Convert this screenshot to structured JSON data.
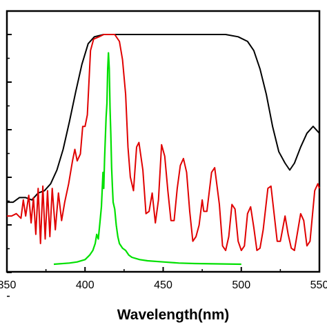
{
  "chart_data": {
    "type": "line",
    "xlabel": "Wavelength(nm)",
    "ylabel": "",
    "xlim": [
      350,
      550
    ],
    "ylim": [
      0,
      1
    ],
    "x_ticks": [
      350,
      400,
      450,
      500,
      550
    ],
    "x_tick_labels": [
      "350",
      "400",
      "450",
      "500",
      "550"
    ],
    "y_tick_count": 6,
    "grid": false,
    "legend": "none",
    "series": [
      {
        "color": "#000000",
        "points": [
          [
            350,
            0.27
          ],
          [
            354,
            0.27
          ],
          [
            358,
            0.29
          ],
          [
            362,
            0.29
          ],
          [
            366,
            0.28
          ],
          [
            370,
            0.31
          ],
          [
            374,
            0.32
          ],
          [
            378,
            0.35
          ],
          [
            382,
            0.41
          ],
          [
            386,
            0.5
          ],
          [
            390,
            0.62
          ],
          [
            394,
            0.75
          ],
          [
            398,
            0.87
          ],
          [
            402,
            0.96
          ],
          [
            406,
            0.99
          ],
          [
            412,
            1.0
          ],
          [
            440,
            1.0
          ],
          [
            470,
            1.0
          ],
          [
            490,
            1.0
          ],
          [
            498,
            0.99
          ],
          [
            504,
            0.97
          ],
          [
            508,
            0.93
          ],
          [
            512,
            0.85
          ],
          [
            516,
            0.74
          ],
          [
            520,
            0.6
          ],
          [
            524,
            0.49
          ],
          [
            528,
            0.44
          ],
          [
            531,
            0.41
          ],
          [
            534,
            0.44
          ],
          [
            538,
            0.51
          ],
          [
            542,
            0.57
          ],
          [
            546,
            0.6
          ],
          [
            550,
            0.57
          ]
        ]
      },
      {
        "color": "#e00000",
        "points": [
          [
            350,
            0.21
          ],
          [
            353,
            0.21
          ],
          [
            356,
            0.22
          ],
          [
            359,
            0.2
          ],
          [
            360.5,
            0.28
          ],
          [
            362,
            0.21
          ],
          [
            364,
            0.3
          ],
          [
            365.5,
            0.18
          ],
          [
            367,
            0.29
          ],
          [
            368.5,
            0.13
          ],
          [
            370,
            0.33
          ],
          [
            371.5,
            0.09
          ],
          [
            373,
            0.34
          ],
          [
            374.5,
            0.11
          ],
          [
            376,
            0.32
          ],
          [
            377.5,
            0.12
          ],
          [
            379,
            0.33
          ],
          [
            381,
            0.15
          ],
          [
            383,
            0.31
          ],
          [
            385,
            0.19
          ],
          [
            387,
            0.27
          ],
          [
            389.5,
            0.35
          ],
          [
            392,
            0.45
          ],
          [
            393.5,
            0.5
          ],
          [
            395,
            0.45
          ],
          [
            397,
            0.48
          ],
          [
            398.5,
            0.6
          ],
          [
            400,
            0.6
          ],
          [
            401.5,
            0.65
          ],
          [
            403.5,
            0.93
          ],
          [
            405.5,
            0.98
          ],
          [
            409,
            0.99
          ],
          [
            412,
            1.0
          ],
          [
            416,
            1.0
          ],
          [
            419,
            1.0
          ],
          [
            422,
            0.97
          ],
          [
            424,
            0.89
          ],
          [
            426,
            0.74
          ],
          [
            427.5,
            0.51
          ],
          [
            429,
            0.38
          ],
          [
            431,
            0.32
          ],
          [
            433,
            0.51
          ],
          [
            434.5,
            0.53
          ],
          [
            437,
            0.41
          ],
          [
            439,
            0.22
          ],
          [
            441,
            0.23
          ],
          [
            443,
            0.31
          ],
          [
            445,
            0.18
          ],
          [
            447,
            0.28
          ],
          [
            449,
            0.52
          ],
          [
            451,
            0.47
          ],
          [
            453,
            0.32
          ],
          [
            455,
            0.19
          ],
          [
            457,
            0.19
          ],
          [
            459,
            0.33
          ],
          [
            461,
            0.43
          ],
          [
            463,
            0.46
          ],
          [
            465,
            0.4
          ],
          [
            467,
            0.23
          ],
          [
            469,
            0.1
          ],
          [
            471,
            0.12
          ],
          [
            473,
            0.17
          ],
          [
            475,
            0.28
          ],
          [
            476,
            0.23
          ],
          [
            478,
            0.23
          ],
          [
            481,
            0.4
          ],
          [
            483,
            0.42
          ],
          [
            486,
            0.26
          ],
          [
            488,
            0.08
          ],
          [
            490,
            0.06
          ],
          [
            492,
            0.12
          ],
          [
            494,
            0.26
          ],
          [
            496,
            0.24
          ],
          [
            498,
            0.1
          ],
          [
            500,
            0.06
          ],
          [
            502,
            0.08
          ],
          [
            504,
            0.22
          ],
          [
            506,
            0.25
          ],
          [
            508,
            0.16
          ],
          [
            510,
            0.06
          ],
          [
            512,
            0.07
          ],
          [
            514,
            0.15
          ],
          [
            517,
            0.33
          ],
          [
            519,
            0.34
          ],
          [
            521,
            0.22
          ],
          [
            523,
            0.1
          ],
          [
            525,
            0.1
          ],
          [
            528,
            0.21
          ],
          [
            530,
            0.13
          ],
          [
            532,
            0.07
          ],
          [
            534,
            0.06
          ],
          [
            536,
            0.14
          ],
          [
            538,
            0.22
          ],
          [
            540,
            0.19
          ],
          [
            542,
            0.08
          ],
          [
            544,
            0.1
          ],
          [
            547,
            0.32
          ],
          [
            549,
            0.35
          ],
          [
            550,
            0.33
          ]
        ]
      },
      {
        "color": "#00e000",
        "points": [
          [
            380,
            0.0
          ],
          [
            390,
            0.005
          ],
          [
            395,
            0.01
          ],
          [
            400,
            0.02
          ],
          [
            403,
            0.04
          ],
          [
            405,
            0.06
          ],
          [
            406.5,
            0.09
          ],
          [
            407.5,
            0.13
          ],
          [
            408.5,
            0.11
          ],
          [
            409.5,
            0.18
          ],
          [
            410.5,
            0.25
          ],
          [
            411.5,
            0.4
          ],
          [
            412,
            0.33
          ],
          [
            412.5,
            0.46
          ],
          [
            413,
            0.55
          ],
          [
            413.5,
            0.64
          ],
          [
            414,
            0.7
          ],
          [
            414.5,
            0.85
          ],
          [
            415,
            0.92
          ],
          [
            415.5,
            0.85
          ],
          [
            416,
            0.68
          ],
          [
            416.5,
            0.57
          ],
          [
            417,
            0.42
          ],
          [
            417.5,
            0.34
          ],
          [
            418,
            0.27
          ],
          [
            419,
            0.24
          ],
          [
            420,
            0.17
          ],
          [
            421,
            0.12
          ],
          [
            422,
            0.09
          ],
          [
            424,
            0.07
          ],
          [
            426,
            0.06
          ],
          [
            428,
            0.04
          ],
          [
            430,
            0.03
          ],
          [
            435,
            0.02
          ],
          [
            440,
            0.015
          ],
          [
            450,
            0.01
          ],
          [
            460,
            0.005
          ],
          [
            470,
            0.003
          ],
          [
            500,
            0.0
          ]
        ]
      }
    ]
  }
}
